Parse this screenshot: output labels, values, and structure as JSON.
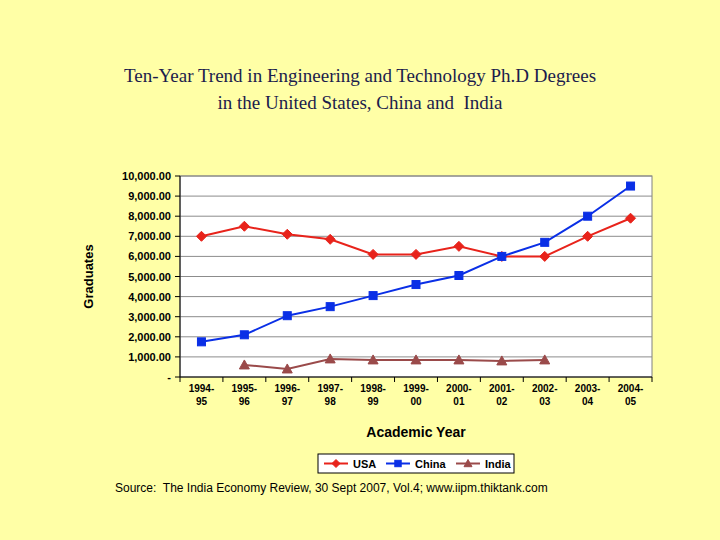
{
  "chart_data": {
    "type": "line",
    "title": "Ten-Year Trend in Engineering and Technology Ph.D Degrees in the United States, China and  India",
    "x_label": "Academic Year",
    "y_label": "Graduates",
    "source": "Source:  The India Economy Review, 30 Sept 2007, Vol.4; www.iipm.thiktank.com",
    "categories": [
      "1994-95",
      "1995-96",
      "1996-97",
      "1997-98",
      "1998-99",
      "1999-00",
      "2000-01",
      "2001-02",
      "2002-03",
      "2003-04",
      "2004-05"
    ],
    "series": [
      {
        "name": "USA",
        "color": "#e8231b",
        "marker": "diamond",
        "values": [
          7000,
          7500,
          7100,
          6850,
          6100,
          6100,
          6500,
          6000,
          6000,
          7000,
          7900
        ]
      },
      {
        "name": "China",
        "color": "#0a2fe6",
        "marker": "square",
        "values": [
          1750,
          2100,
          3050,
          3500,
          4050,
          4600,
          5050,
          6000,
          6700,
          8000,
          9500
        ]
      },
      {
        "name": "India",
        "color": "#9a4a4a",
        "marker": "triangle",
        "values": [
          null,
          600,
          400,
          900,
          850,
          850,
          850,
          800,
          850,
          null,
          null
        ]
      }
    ],
    "ylim": [
      0,
      10000
    ],
    "yticks": [
      {
        "value": 0,
        "label": "-"
      },
      {
        "value": 1000,
        "label": "1,000.00"
      },
      {
        "value": 2000,
        "label": "2,000.00"
      },
      {
        "value": 3000,
        "label": "3,000.00"
      },
      {
        "value": 4000,
        "label": "4,000.00"
      },
      {
        "value": 5000,
        "label": "5,000.00"
      },
      {
        "value": 6000,
        "label": "6,000.00"
      },
      {
        "value": 7000,
        "label": "7,000.00"
      },
      {
        "value": 8000,
        "label": "8,000.00"
      },
      {
        "value": 9000,
        "label": "9,000.00"
      },
      {
        "value": 10000,
        "label": "10,000.00"
      }
    ],
    "grid": true,
    "legend": "bottom"
  }
}
